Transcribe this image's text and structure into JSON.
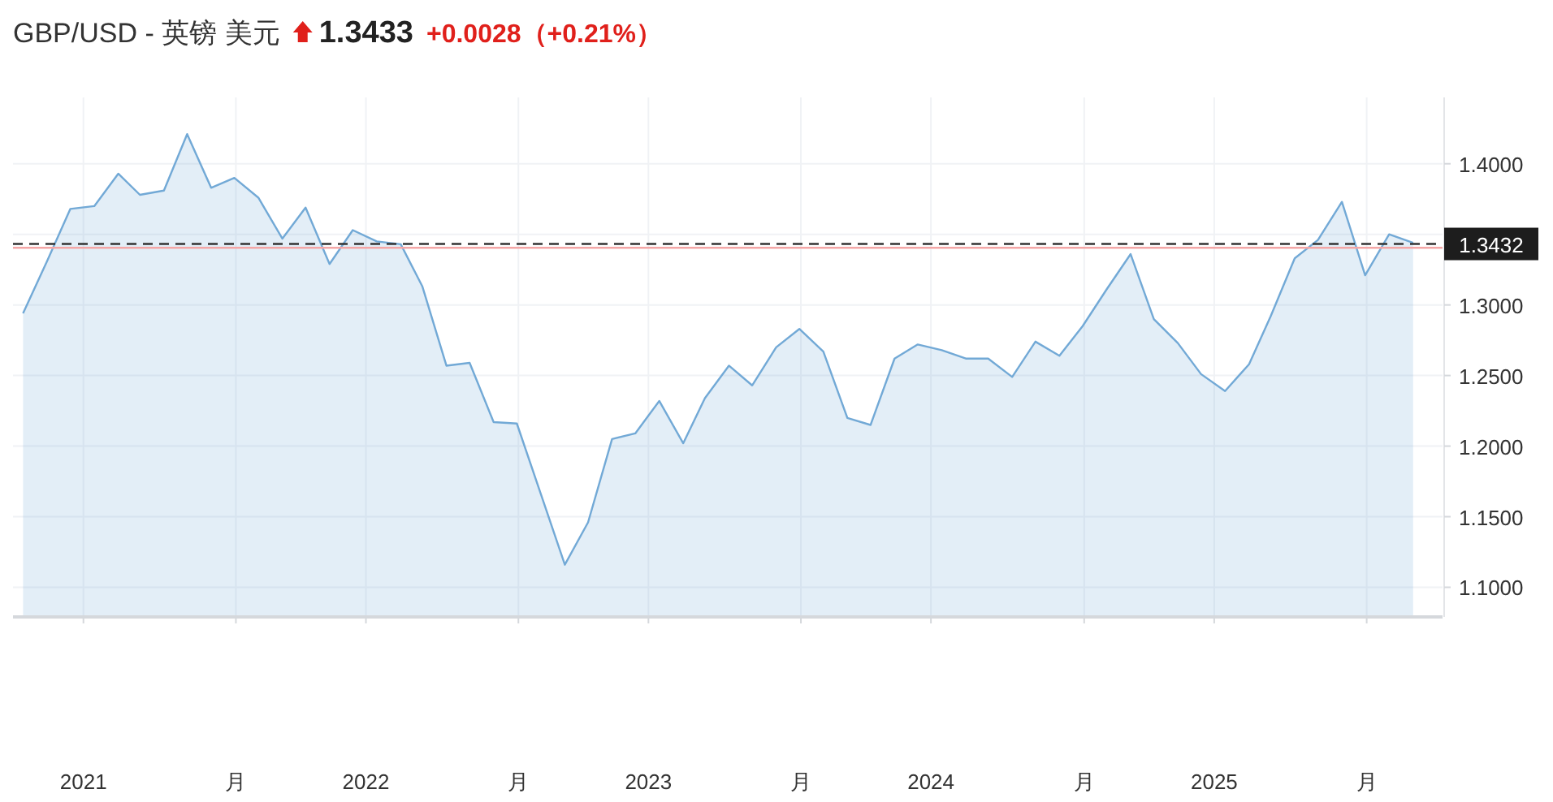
{
  "chart_data": {
    "type": "area",
    "title": "GBP/USD - 英镑 美元",
    "annotations": [
      "1.3433",
      "+0.0028（+0.21%）"
    ],
    "x": [
      "2020-10-15",
      "2020-11-15",
      "2020-12-15",
      "2021-01-15",
      "2021-02-15",
      "2021-03-15",
      "2021-04-15",
      "2021-05-15",
      "2021-06-15",
      "2021-07-15",
      "2021-08-15",
      "2021-09-15",
      "2021-10-15",
      "2021-11-15",
      "2021-12-15",
      "2022-01-15",
      "2022-02-15",
      "2022-03-15",
      "2022-04-15",
      "2022-05-15",
      "2022-06-15",
      "2022-07-15",
      "2022-08-15",
      "2022-09-15",
      "2022-10-15",
      "2022-11-15",
      "2022-12-15",
      "2023-01-15",
      "2023-02-15",
      "2023-03-15",
      "2023-04-15",
      "2023-05-15",
      "2023-06-15",
      "2023-07-15",
      "2023-08-15",
      "2023-09-15",
      "2023-10-15",
      "2023-11-15",
      "2023-12-15",
      "2024-01-15",
      "2024-02-15",
      "2024-03-15",
      "2024-04-15",
      "2024-05-15",
      "2024-06-15",
      "2024-07-15",
      "2024-08-15",
      "2024-09-15",
      "2024-10-15",
      "2024-11-15",
      "2024-12-15",
      "2025-01-15",
      "2025-02-15",
      "2025-03-15",
      "2025-04-15",
      "2025-05-15",
      "2025-06-15",
      "2025-07-15",
      "2025-08-15",
      "2025-09-15"
    ],
    "series": [
      {
        "color": "#72a9d6",
        "values": [
          1.294,
          1.331,
          1.368,
          1.37,
          1.393,
          1.378,
          1.381,
          1.421,
          1.383,
          1.39,
          1.376,
          1.347,
          1.369,
          1.329,
          1.353,
          1.345,
          1.343,
          1.313,
          1.257,
          1.259,
          1.217,
          1.216,
          1.166,
          1.116,
          1.146,
          1.205,
          1.209,
          1.232,
          1.202,
          1.234,
          1.257,
          1.243,
          1.27,
          1.283,
          1.267,
          1.22,
          1.215,
          1.262,
          1.272,
          1.268,
          1.262,
          1.262,
          1.249,
          1.274,
          1.264,
          1.285,
          1.311,
          1.336,
          1.29,
          1.273,
          1.251,
          1.239,
          1.258,
          1.292,
          1.333,
          1.346,
          1.373,
          1.321,
          1.35,
          1.344
        ]
      }
    ],
    "xlim": [
      "2020-10-02",
      "2025-10-23"
    ],
    "xticks": [
      {
        "value": "2021-01-01",
        "label": "2021"
      },
      {
        "value": "2021-07-17",
        "label": "月"
      },
      {
        "value": "2022-01-01",
        "label": "2022"
      },
      {
        "value": "2022-07-17",
        "label": "月"
      },
      {
        "value": "2023-01-01",
        "label": "2023"
      },
      {
        "value": "2023-07-17",
        "label": "月"
      },
      {
        "value": "2024-01-01",
        "label": "2024"
      },
      {
        "value": "2024-07-17",
        "label": "月"
      },
      {
        "value": "2025-01-01",
        "label": "2025"
      },
      {
        "value": "2025-07-17",
        "label": "月"
      }
    ],
    "ylim": [
      1.079,
      1.447
    ],
    "yticks": [
      {
        "value": 1.1,
        "label": "1.1000"
      },
      {
        "value": 1.15,
        "label": "1.1500"
      },
      {
        "value": 1.2,
        "label": "1.2000"
      },
      {
        "value": 1.25,
        "label": "1.2500"
      },
      {
        "value": 1.3,
        "label": "1.3000"
      },
      {
        "value": 1.35,
        "label": null
      },
      {
        "value": 1.4,
        "label": "1.4000"
      }
    ],
    "ref_lines": [
      {
        "axis": "y",
        "value": 1.3405,
        "color": "#f4a6a6",
        "line_style": "solid"
      },
      {
        "axis": "y",
        "value": 1.3432,
        "label": "1.3432",
        "color": "#333333",
        "line_style": "dashed"
      }
    ],
    "grid": true
  }
}
